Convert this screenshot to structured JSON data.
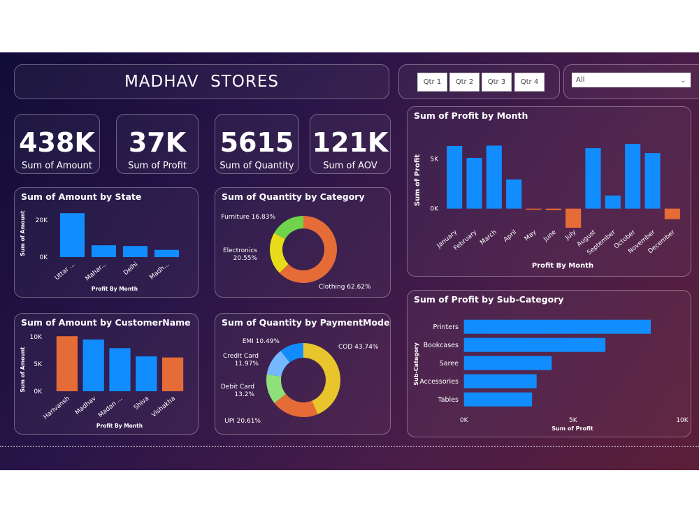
{
  "header": {
    "title": "MADHAV  STORES"
  },
  "slicers": {
    "quarters": [
      "Qtr 1",
      "Qtr 2",
      "Qtr 3",
      "Qtr 4"
    ],
    "dropdown_value": "All"
  },
  "kpis": [
    {
      "value": "438K",
      "label": "Sum of Amount"
    },
    {
      "value": "37K",
      "label": "Sum of Profit"
    },
    {
      "value": "5615",
      "label": "Sum of Quantity"
    },
    {
      "value": "121K",
      "label": "Sum of AOV"
    }
  ],
  "colors": {
    "positive": "#118dff",
    "highlight": "#e66c37"
  },
  "chart_data": [
    {
      "id": "state",
      "type": "bar",
      "title": "Sum of Amount by State",
      "xlabel": "Profit By Month",
      "ylabel": "Sum of Amount",
      "categories": [
        "Uttar ...",
        "Mahar...",
        "Delhi",
        "Madh..."
      ],
      "values": [
        23800,
        6400,
        6000,
        3900
      ],
      "highlight": [
        false,
        false,
        false,
        false
      ],
      "ylim": [
        0,
        25000
      ],
      "yticks": [
        0,
        20000
      ],
      "ytick_labels": [
        "0K",
        "20K"
      ],
      "grid": false
    },
    {
      "id": "customer",
      "type": "bar",
      "title": "Sum of Amount by CustomerName",
      "xlabel": "Profit By Month",
      "ylabel": "Sum of Amount",
      "categories": [
        "Harivansh",
        "Madhav",
        "Madan ...",
        "Shiva",
        "Vishakha"
      ],
      "values": [
        10100,
        9500,
        7900,
        6400,
        6200
      ],
      "highlight": [
        true,
        false,
        false,
        false,
        true
      ],
      "ylim": [
        0,
        10000
      ],
      "yticks": [
        0,
        5000,
        10000
      ],
      "ytick_labels": [
        "0K",
        "5K",
        "10K"
      ],
      "grid": false
    },
    {
      "id": "category",
      "type": "pie",
      "donut": true,
      "title": "Sum of Quantity by Category",
      "slices": [
        {
          "label": "Clothing",
          "value": 62.62,
          "display": "Clothing 62.62%",
          "color": "#e66c37"
        },
        {
          "label": "Electronics",
          "value": 20.55,
          "display": "Electronics\n20.55%",
          "color": "#e8dc1a"
        },
        {
          "label": "Furniture",
          "value": 16.83,
          "display": "Furniture 16.83%",
          "color": "#6fd34b"
        }
      ]
    },
    {
      "id": "payment",
      "type": "pie",
      "donut": true,
      "title": "Sum of Quantity by PaymentMode",
      "slices": [
        {
          "label": "COD",
          "value": 43.74,
          "display": "COD 43.74%",
          "color": "#e8c52c"
        },
        {
          "label": "UPI",
          "value": 20.61,
          "display": "UPI 20.61%",
          "color": "#e66c37"
        },
        {
          "label": "Debit Card",
          "value": 13.2,
          "display": "Debit Card\n13.2%",
          "color": "#8de07a"
        },
        {
          "label": "Credit Card",
          "value": 11.97,
          "display": "Credit Card\n11.97%",
          "color": "#74b9ff"
        },
        {
          "label": "EMI",
          "value": 10.49,
          "display": "EMI 10.49%",
          "color": "#118dff"
        }
      ]
    },
    {
      "id": "month",
      "type": "bar",
      "title": "Sum of Profit by Month",
      "xlabel": "Profit By Month",
      "ylabel": "Sum of Profit",
      "categories": [
        "January",
        "February",
        "March",
        "April",
        "May",
        "June",
        "July",
        "August",
        "September",
        "October",
        "November",
        "December"
      ],
      "values": [
        6300,
        5100,
        6340,
        2940,
        -100,
        -150,
        -1920,
        6080,
        1320,
        6500,
        5590,
        -1060
      ],
      "highlight": [
        false,
        false,
        false,
        false,
        true,
        true,
        true,
        false,
        false,
        false,
        false,
        true
      ],
      "ylim": [
        -2500,
        7000
      ],
      "yticks": [
        0,
        5000
      ],
      "ytick_labels": [
        "0K",
        "5K"
      ],
      "grid": false
    },
    {
      "id": "subcat",
      "type": "bar",
      "orientation": "horizontal",
      "title": "Sum of Profit by Sub-Category",
      "xlabel": "Sum of Profit",
      "ylabel": "Sub-Category",
      "categories": [
        "Printers",
        "Bookcases",
        "Saree",
        "Accessories",
        "Tables"
      ],
      "values": [
        8560,
        6480,
        4020,
        3330,
        3120
      ],
      "xlim": [
        0,
        10000
      ],
      "xticks": [
        0,
        5000,
        10000
      ],
      "xtick_labels": [
        "0K",
        "5K",
        "10K"
      ],
      "grid": false
    }
  ]
}
